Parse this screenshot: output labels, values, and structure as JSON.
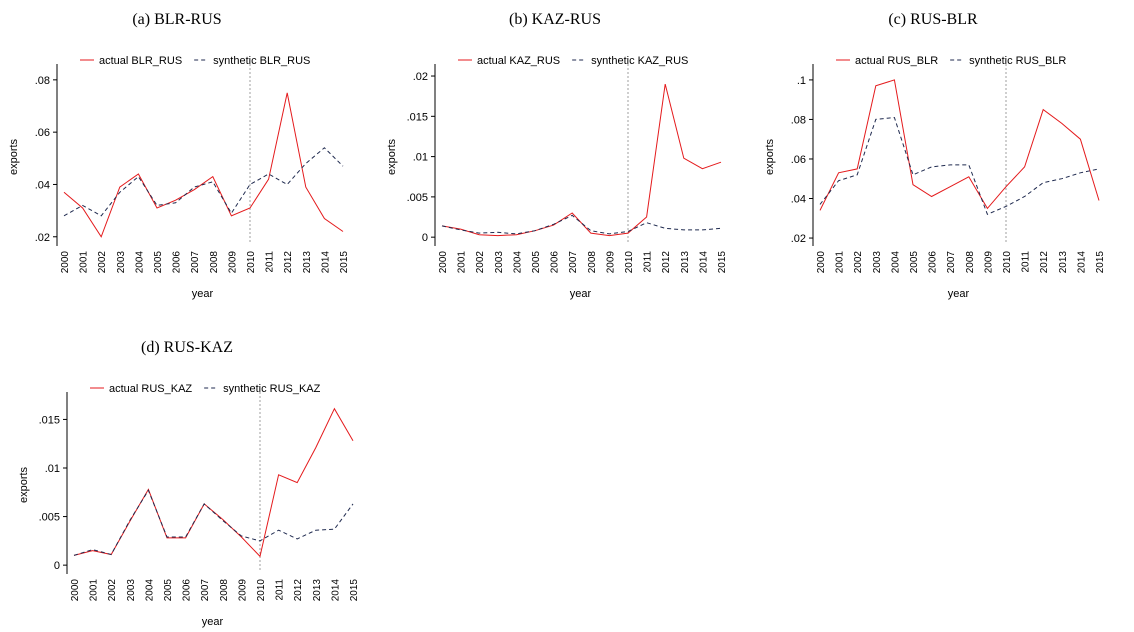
{
  "chart_data": [
    {
      "type": "line",
      "title": "(a) BLR-RUS",
      "xlabel": "year",
      "ylabel": "exports",
      "categories": [
        "2000",
        "2001",
        "2002",
        "2003",
        "2004",
        "2005",
        "2006",
        "2007",
        "2008",
        "2009",
        "2010",
        "2011",
        "2012",
        "2013",
        "2014",
        "2015"
      ],
      "vline": "2010",
      "series": [
        {
          "name": "actual BLR_RUS",
          "color": "#e41a1c",
          "dashed": false,
          "values": [
            0.037,
            0.031,
            0.02,
            0.039,
            0.044,
            0.031,
            0.034,
            0.038,
            0.043,
            0.028,
            0.031,
            0.042,
            0.075,
            0.039,
            0.027,
            0.022
          ]
        },
        {
          "name": "synthetic BLR_RUS",
          "color": "#1f2a4f",
          "dashed": true,
          "values": [
            0.028,
            0.032,
            0.028,
            0.037,
            0.043,
            0.032,
            0.033,
            0.039,
            0.041,
            0.029,
            0.04,
            0.044,
            0.04,
            0.048,
            0.054,
            0.047
          ]
        }
      ],
      "ylim": [
        0.018,
        0.083
      ],
      "yticks": [
        {
          "value": 0.02,
          "label": ".02"
        },
        {
          "value": 0.04,
          "label": ".04"
        },
        {
          "value": 0.06,
          "label": ".06"
        },
        {
          "value": 0.08,
          "label": ".08"
        }
      ]
    },
    {
      "type": "line",
      "title": "(b) KAZ-RUS",
      "xlabel": "year",
      "ylabel": "exports",
      "categories": [
        "2000",
        "2001",
        "2002",
        "2003",
        "2004",
        "2005",
        "2006",
        "2007",
        "2008",
        "2009",
        "2010",
        "2011",
        "2012",
        "2013",
        "2014",
        "2015"
      ],
      "vline": "2010",
      "series": [
        {
          "name": "actual KAZ_RUS",
          "color": "#e41a1c",
          "dashed": false,
          "values": [
            0.0014,
            0.001,
            0.0003,
            0.0002,
            0.0003,
            0.0008,
            0.0015,
            0.003,
            0.0005,
            0.0002,
            0.0005,
            0.0025,
            0.019,
            0.0098,
            0.0085,
            0.0093
          ]
        },
        {
          "name": "synthetic KAZ_RUS",
          "color": "#1f2a4f",
          "dashed": true,
          "values": [
            0.0014,
            0.0009,
            0.0005,
            0.0006,
            0.0004,
            0.0008,
            0.0016,
            0.0027,
            0.0008,
            0.0004,
            0.0007,
            0.0018,
            0.0011,
            0.0009,
            0.0009,
            0.0011
          ]
        }
      ],
      "ylim": [
        -0.0006,
        0.0205
      ],
      "yticks": [
        0,
        {
          "value": 0.005,
          "label": ".005"
        },
        {
          "value": 0.01,
          "label": ".01"
        },
        {
          "value": 0.015,
          "label": ".015"
        },
        {
          "value": 0.02,
          "label": ".02"
        }
      ]
    },
    {
      "type": "line",
      "title": "(c) RUS-BLR",
      "xlabel": "year",
      "ylabel": "exports",
      "categories": [
        "2000",
        "2001",
        "2002",
        "2003",
        "2004",
        "2005",
        "2006",
        "2007",
        "2008",
        "2009",
        "2010",
        "2011",
        "2012",
        "2013",
        "2014",
        "2015"
      ],
      "vline": "2010",
      "series": [
        {
          "name": "actual RUS_BLR",
          "color": "#e41a1c",
          "dashed": false,
          "values": [
            0.034,
            0.053,
            0.055,
            0.097,
            0.1,
            0.047,
            0.041,
            0.046,
            0.051,
            0.035,
            0.046,
            0.056,
            0.085,
            0.078,
            0.07,
            0.039
          ]
        },
        {
          "name": "synthetic RUS_BLR",
          "color": "#1f2a4f",
          "dashed": true,
          "values": [
            0.037,
            0.049,
            0.052,
            0.08,
            0.081,
            0.052,
            0.056,
            0.057,
            0.057,
            0.032,
            0.036,
            0.041,
            0.048,
            0.05,
            0.053,
            0.055
          ]
        }
      ],
      "ylim": [
        0.018,
        0.104
      ],
      "yticks": [
        {
          "value": 0.02,
          "label": ".02"
        },
        {
          "value": 0.04,
          "label": ".04"
        },
        {
          "value": 0.06,
          "label": ".06"
        },
        {
          "value": 0.08,
          "label": ".08"
        },
        {
          "value": 0.1,
          "label": ".1"
        }
      ]
    },
    {
      "type": "line",
      "title": "(d) RUS-KAZ",
      "xlabel": "year",
      "ylabel": "exports",
      "categories": [
        "2000",
        "2001",
        "2002",
        "2003",
        "2004",
        "2005",
        "2006",
        "2007",
        "2008",
        "2009",
        "2010",
        "2011",
        "2012",
        "2013",
        "2014",
        "2015"
      ],
      "vline": "2010",
      "series": [
        {
          "name": "actual RUS_KAZ",
          "color": "#e41a1c",
          "dashed": false,
          "values": [
            0.001,
            0.0015,
            0.0011,
            0.0045,
            0.0078,
            0.0028,
            0.0028,
            0.0063,
            0.0047,
            0.0029,
            0.0009,
            0.0093,
            0.0085,
            0.0121,
            0.0161,
            0.0128
          ]
        },
        {
          "name": "synthetic RUS_KAZ",
          "color": "#1f2a4f",
          "dashed": true,
          "values": [
            0.001,
            0.0016,
            0.0011,
            0.0046,
            0.0077,
            0.0029,
            0.0029,
            0.0063,
            0.0046,
            0.003,
            0.0025,
            0.0036,
            0.0027,
            0.0036,
            0.0037,
            0.0063
          ]
        }
      ],
      "ylim": [
        -0.0005,
        0.017
      ],
      "yticks": [
        0,
        {
          "value": 0.005,
          "label": ".005"
        },
        {
          "value": 0.01,
          "label": ".01"
        },
        {
          "value": 0.015,
          "label": ".015"
        }
      ]
    }
  ]
}
